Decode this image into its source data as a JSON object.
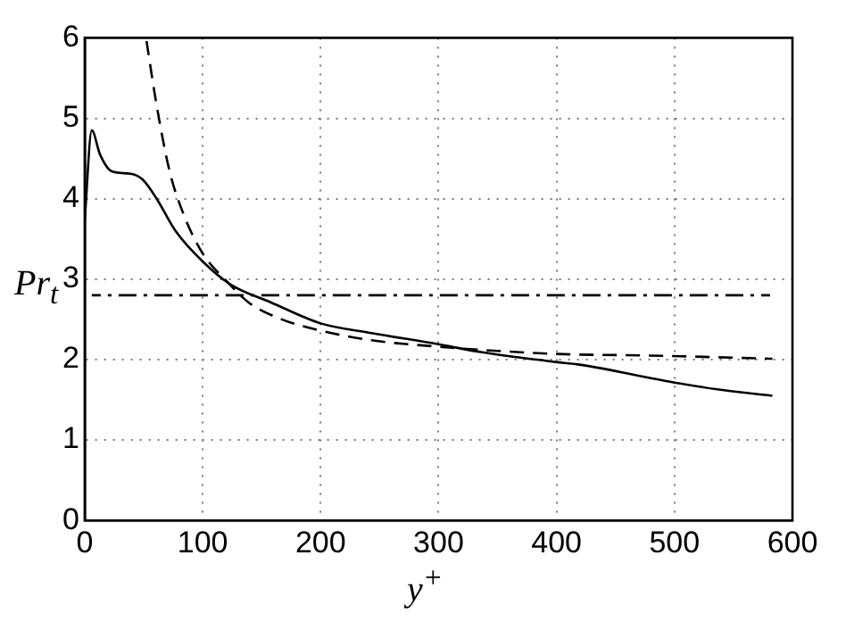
{
  "chart_data": {
    "type": "line",
    "xlabel": "y$^{+}$",
    "ylabel": "Pr$_{t}$",
    "xlim": [
      0,
      600
    ],
    "ylim": [
      0,
      6
    ],
    "xticks": [
      0,
      100,
      200,
      300,
      400,
      500,
      600
    ],
    "yticks": [
      0,
      1,
      2,
      3,
      4,
      5,
      6
    ],
    "grid": true,
    "legend": false,
    "marker": "none",
    "series": [
      {
        "color": "#000000",
        "line_style": "solid",
        "x": [
          0,
          6,
          13,
          23,
          39,
          49,
          61,
          77,
          100,
          124,
          158,
          200,
          243,
          300,
          337,
          399,
          418,
          498,
          536,
          583
        ],
        "values": [
          3.73,
          4.85,
          4.55,
          4.34,
          4.31,
          4.24,
          4.0,
          3.6,
          3.22,
          2.93,
          2.71,
          2.45,
          2.33,
          2.19,
          2.09,
          1.97,
          1.94,
          1.72,
          1.63,
          1.55
        ]
      },
      {
        "color": "#000000",
        "line_style": "dashed",
        "x": [
          52,
          61,
          72,
          84,
          100,
          120,
          139,
          167,
          200,
          243,
          300,
          337,
          399,
          479,
          583
        ],
        "values": [
          6,
          5.16,
          4.34,
          3.8,
          3.32,
          2.98,
          2.71,
          2.5,
          2.36,
          2.24,
          2.16,
          2.12,
          2.07,
          2.05,
          2.01
        ]
      },
      {
        "color": "#000000",
        "line_style": "dashdot",
        "x": [
          6,
          581
        ],
        "values": [
          2.8,
          2.8
        ]
      }
    ]
  }
}
